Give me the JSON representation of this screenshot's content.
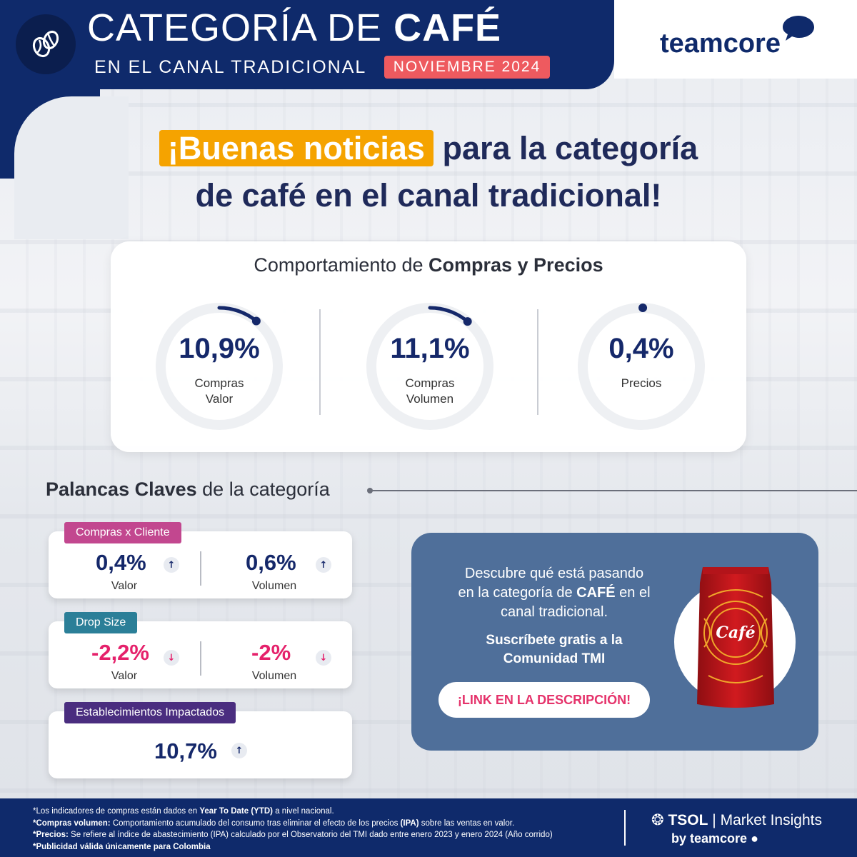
{
  "header": {
    "title_light": "CATEGORÍA DE ",
    "title_bold": "CAFÉ",
    "subtitle": "EN EL CANAL TRADICIONAL",
    "date_badge": "NOVIEMBRE 2024",
    "brand": "teamcore",
    "logo_icon": "coffee-beans-icon"
  },
  "headline": {
    "highlight": "¡Buenas noticias",
    "line1_rest": " para la categoría",
    "line2": "de café en el canal tradicional!"
  },
  "kpis": {
    "title_light": "Comportamiento de ",
    "title_bold": "Compras y Precios",
    "items": [
      {
        "value": "10,9%",
        "label": "Compras\nValor",
        "progress": 0.109
      },
      {
        "value": "11,1%",
        "label": "Compras\nVolumen",
        "progress": 0.111
      },
      {
        "value": "0,4%",
        "label": "Precios",
        "progress": 0.004
      }
    ]
  },
  "palancas": {
    "title_bold": "Palancas Claves",
    "title_light": " de la categoría",
    "compras_cliente": {
      "tag": "Compras x Cliente",
      "valor": "0,4%",
      "valor_label": "Valor",
      "volumen": "0,6%",
      "volumen_label": "Volumen"
    },
    "drop_size": {
      "tag": "Drop Size",
      "valor": "-2,2%",
      "valor_label": "Valor",
      "volumen": "-2%",
      "volumen_label": "Volumen"
    },
    "establecimientos": {
      "tag": "Establecimientos Impactados",
      "valor": "10,7%"
    }
  },
  "promo": {
    "text_a": "Descubre qué está pasando\nen la categoría de ",
    "text_bold": "CAFÉ",
    "text_b": " en el\ncanal tradicional.",
    "subscribe": "Suscríbete gratis a la\nComunidad TMI",
    "button": "¡LINK EN LA DESCRIPCIÓN!",
    "bag_label": "Café"
  },
  "footer": {
    "n1_a": "*Los indicadores de compras están dados en ",
    "n1_b": "Year To Date (YTD)",
    "n1_c": " a nivel nacional.",
    "n2_a": "*Compras volumen:",
    "n2_b": " Comportamiento acumulado del consumo tras eliminar el efecto de los precios ",
    "n2_c": "(IPA)",
    "n2_d": " sobre las ventas en valor.",
    "n3_a": "*Precios:",
    "n3_b": " Se refiere al índice de abastecimiento (IPA) calculado por el Observatorio del TMI dado entre enero 2023 y enero 2024 (Año corrido)",
    "n4": "*Publicidad válida únicamente para Colombia",
    "tsol_bold": "TSOL",
    "tsol_rest": " | Market Insights",
    "by": "by teamcore"
  },
  "colors": {
    "navy": "#0f2a6b",
    "accent_red": "#ee5a5f",
    "highlight_orange": "#f5a300",
    "tag_pink": "#c2478f",
    "tag_teal": "#2b7f98",
    "tag_purple": "#4a2d7f",
    "negative": "#e5216b",
    "promo_blue": "#4f6f9a"
  }
}
